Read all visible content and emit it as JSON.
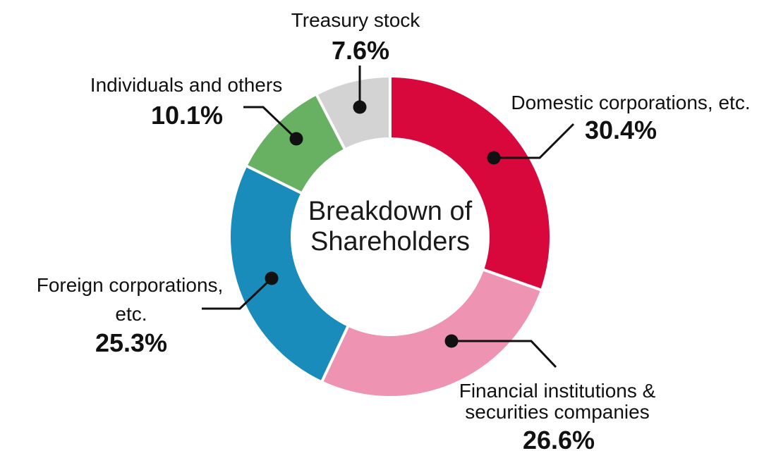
{
  "chart_data": {
    "type": "pie",
    "subtype": "donut",
    "title": "Breakdown of Shareholders",
    "title_lines": [
      "Breakdown of",
      "Shareholders"
    ],
    "direction": "clockwise",
    "start_angle_deg": 0,
    "total": 100.0,
    "legend_position": "outside-callouts",
    "background": "#FFFFFF",
    "leader_color": "#111111",
    "slices": [
      {
        "id": "domestic",
        "label": "Domestic corporations, etc.",
        "label_lines": [
          "Domestic corporations, etc."
        ],
        "value": 30.4,
        "value_label": "30.4%",
        "color": "#D8073C"
      },
      {
        "id": "financial",
        "label": "Financial institutions & securities companies",
        "label_lines": [
          "Financial institutions &",
          "securities companies"
        ],
        "value": 26.6,
        "value_label": "26.6%",
        "color": "#EF93B3"
      },
      {
        "id": "foreign",
        "label": "Foreign corporations, etc.",
        "label_lines": [
          "Foreign corporations,",
          "etc."
        ],
        "value": 25.3,
        "value_label": "25.3%",
        "color": "#1A8CBC"
      },
      {
        "id": "individuals",
        "label": "Individuals and others",
        "label_lines": [
          "Individuals and others"
        ],
        "value": 10.1,
        "value_label": "10.1%",
        "color": "#68B163"
      },
      {
        "id": "treasury",
        "label": "Treasury stock",
        "label_lines": [
          "Treasury stock"
        ],
        "value": 7.6,
        "value_label": "7.6%",
        "color": "#D3D3D3"
      }
    ]
  }
}
